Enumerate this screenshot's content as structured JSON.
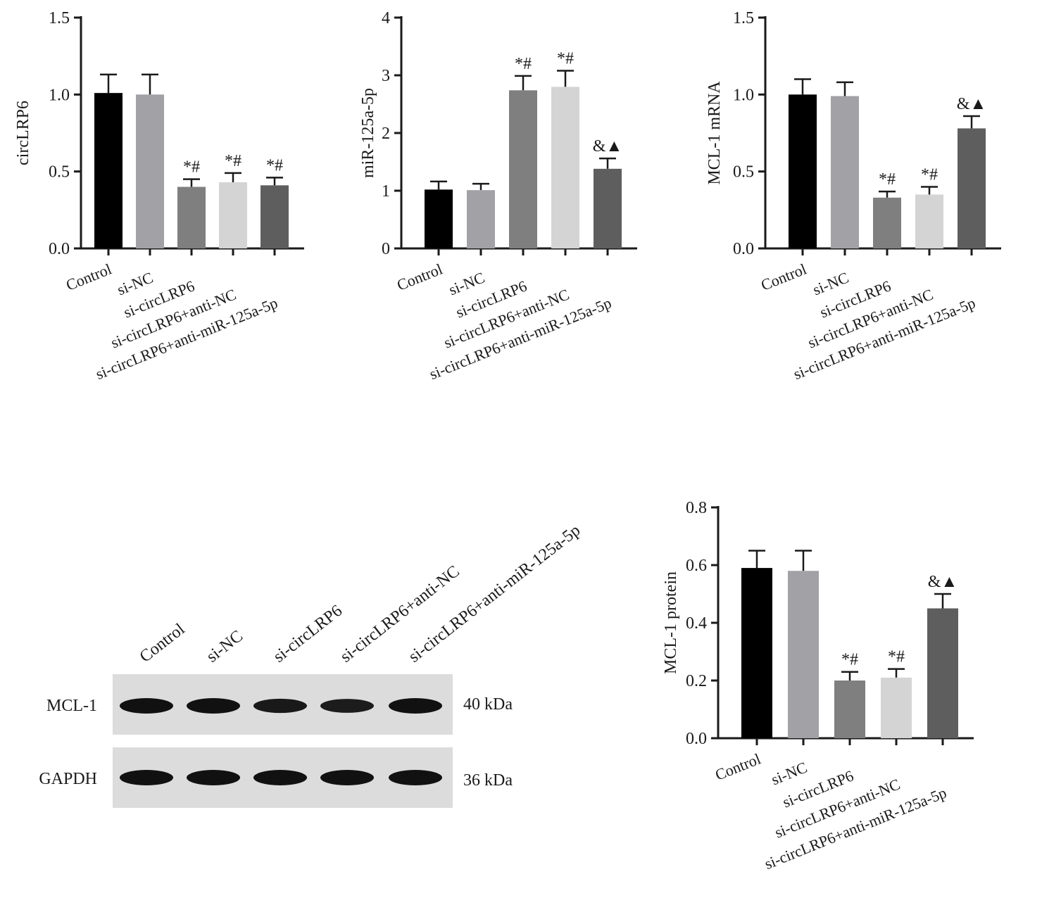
{
  "colors": [
    "#000000",
    "#a1a1a6",
    "#7f7f7f",
    "#d4d4d4",
    "#5e5e5e"
  ],
  "categories": [
    "Control",
    "si-NC",
    "si-circLRP6",
    "si-circLRP6+anti-NC",
    "si-circLRP6+anti-miR-125a-5p"
  ],
  "chart_data": [
    {
      "type": "bar",
      "ylabel": "circLRP6",
      "ylim": [
        0,
        1.5
      ],
      "yticks": [
        "0.0",
        "0.5",
        "1.0",
        "1.5"
      ],
      "values": [
        1.01,
        1.0,
        0.4,
        0.43,
        0.41
      ],
      "errors": [
        0.12,
        0.13,
        0.05,
        0.06,
        0.05
      ],
      "annotations": [
        "",
        "",
        "*#",
        "*#",
        "*#"
      ]
    },
    {
      "type": "bar",
      "ylabel": "miR-125a-5p",
      "ylim": [
        0,
        4
      ],
      "yticks": [
        "0",
        "1",
        "2",
        "3",
        "4"
      ],
      "values": [
        1.02,
        1.01,
        2.74,
        2.8,
        1.38
      ],
      "errors": [
        0.14,
        0.11,
        0.25,
        0.28,
        0.18
      ],
      "annotations": [
        "",
        "",
        "*#",
        "*#",
        "&▲"
      ]
    },
    {
      "type": "bar",
      "ylabel": "MCL-1 mRNA",
      "ylim": [
        0,
        1.5
      ],
      "yticks": [
        "0.0",
        "0.5",
        "1.0",
        "1.5"
      ],
      "values": [
        1.0,
        0.99,
        0.33,
        0.35,
        0.78
      ],
      "errors": [
        0.1,
        0.09,
        0.04,
        0.05,
        0.08
      ],
      "annotations": [
        "",
        "",
        "*#",
        "*#",
        "&▲"
      ]
    },
    {
      "type": "bar",
      "ylabel": "MCL-1 protein",
      "ylim": [
        0,
        0.8
      ],
      "yticks": [
        "0.0",
        "0.2",
        "0.4",
        "0.6",
        "0.8"
      ],
      "values": [
        0.59,
        0.58,
        0.2,
        0.21,
        0.45
      ],
      "errors": [
        0.06,
        0.07,
        0.03,
        0.03,
        0.05
      ],
      "annotations": [
        "",
        "",
        "*#",
        "*#",
        "&▲"
      ]
    }
  ],
  "blot": {
    "lanes": [
      "Control",
      "si-NC",
      "si-circLRP6",
      "si-circLRP6+anti-NC",
      "si-circLRP6+anti-miR-125a-5p"
    ],
    "rows": [
      {
        "label": "MCL-1",
        "size": "40 kDa",
        "intensity": [
          1.0,
          1.0,
          0.85,
          0.82,
          1.0
        ]
      },
      {
        "label": "GAPDH",
        "size": "36 kDa",
        "intensity": [
          1.0,
          1.0,
          1.0,
          1.0,
          1.0
        ]
      }
    ]
  }
}
